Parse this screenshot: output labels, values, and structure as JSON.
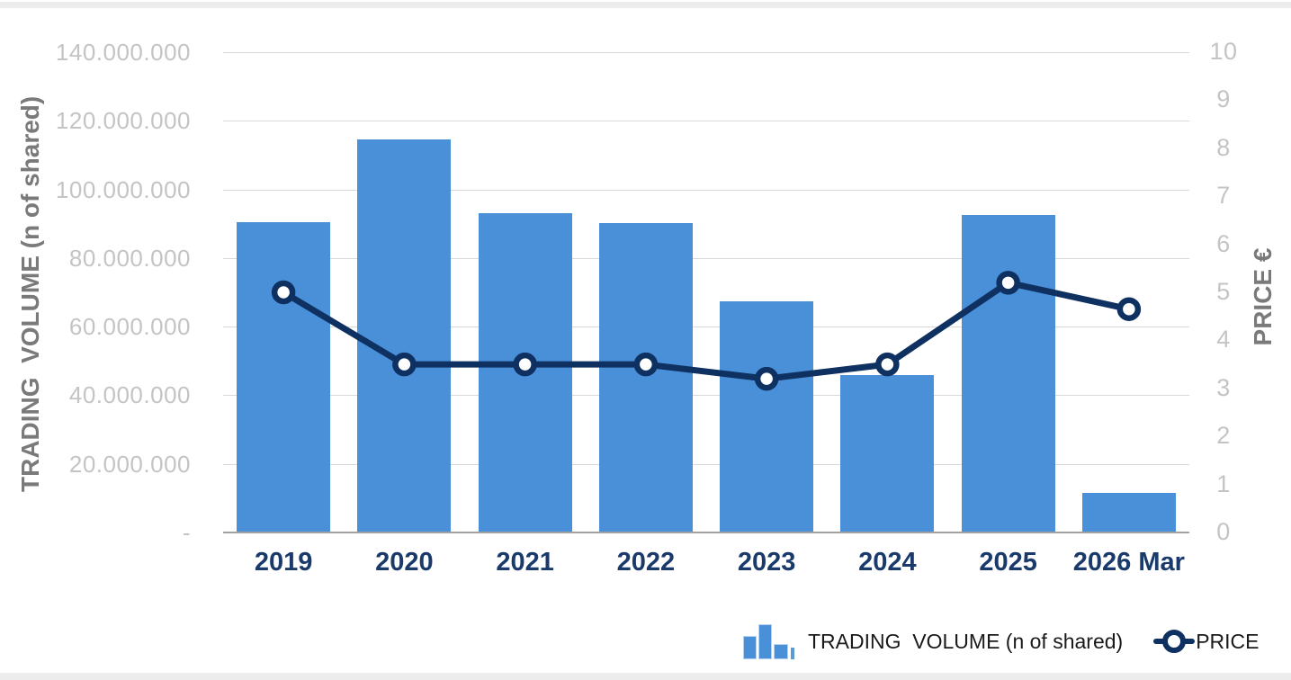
{
  "window": {
    "top_strip_color": "#ececec",
    "bottom_strip_color": "#ececec"
  },
  "legend": {
    "volume_label": "TRADING  VOLUME (n of shared)",
    "price_label": "PRICE"
  },
  "colors": {
    "bar": "#4a90d9",
    "line": "#0e3161",
    "marker_fill": "#ffffff",
    "gridline": "#d9d9d9",
    "axis_line": "#a2a2a2",
    "tick_label": "#c4c4c4",
    "axis_title": "#7a7a7a",
    "category_label": "#1a3a6b",
    "legend_text": "#1a1a1a"
  },
  "chart_data": {
    "type": "combo",
    "categories": [
      "2019",
      "2020",
      "2021",
      "2022",
      "2023",
      "2024",
      "2025",
      "2026 Mar"
    ],
    "series": [
      {
        "name": "TRADING  VOLUME (n of shared)",
        "type": "bar",
        "axis": "left",
        "values": [
          90400000,
          114600000,
          93000000,
          90100000,
          67400000,
          46000000,
          92600000,
          11500000
        ]
      },
      {
        "name": "PRICE",
        "type": "line",
        "axis": "right",
        "values": [
          5.0,
          3.5,
          3.5,
          3.5,
          3.2,
          3.5,
          5.2,
          4.65
        ]
      }
    ],
    "left_axis": {
      "title": "TRADING  VOLUME (n of shared)",
      "min": 0,
      "max": 140000000,
      "step": 20000000,
      "tick_labels": [
        "-",
        "20.000.000",
        "40.000.000",
        "60.000.000",
        "80.000.000",
        "100.000.000",
        "120.000.000",
        "140.000.000"
      ]
    },
    "right_axis": {
      "title": "PRICE €",
      "min": 0,
      "max": 10,
      "step": 1,
      "tick_labels": [
        "0",
        "1",
        "2",
        "3",
        "4",
        "5",
        "6",
        "7",
        "8",
        "9",
        "10"
      ]
    },
    "grid": true,
    "legend_position": "bottom-right"
  }
}
